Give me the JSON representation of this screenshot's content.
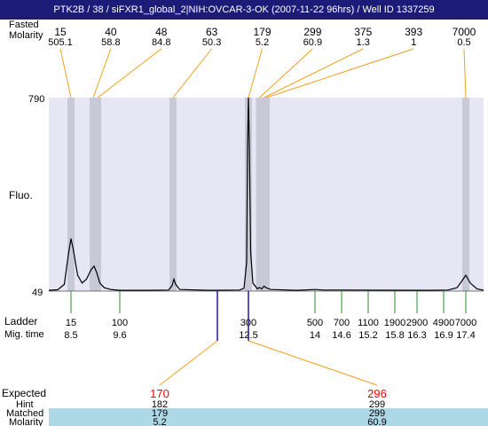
{
  "header": {
    "title": "PTK2B / 38 / siFXR1_global_2|NIH:OVCAR-3-OK (2007-11-22 96hrs) / Well ID 1337259",
    "row_labels": [
      "Fasted",
      "Molarity"
    ]
  },
  "labels": {
    "fluo": "Fluo.",
    "ymax": "790",
    "ymin": "49",
    "ladder": "Ladder",
    "mig_time": "Mig. time",
    "expected": "Expected",
    "hint": "Hint",
    "matched": "Matched",
    "molarity": "Molarity"
  },
  "colors": {
    "title_bg": "#1c1c78",
    "plot_bg": "#e6e6f5",
    "band": "#c8c8d6",
    "connector": "#f0a020",
    "ladder_tick": "#2e8b2e",
    "expected_text": "#ff0000",
    "row_highlight": "#add8e6"
  },
  "chart_data": {
    "type": "line",
    "title": "PTK2B / 38 / siFXR1_global_2|NIH:OVCAR-3-OK (2007-11-22 96hrs) / Well ID 1337259",
    "ylabel": "Fluo.",
    "ylim": [
      49,
      790
    ],
    "peaks": [
      {
        "size": "15",
        "molarity": "505.1",
        "time": 8.5
      },
      {
        "size": "40",
        "molarity": "58.8",
        "time": 9.0
      },
      {
        "size": "48",
        "molarity": "84.8",
        "time": 9.1
      },
      {
        "size": "63",
        "molarity": "50.3",
        "time": 10.8
      },
      {
        "size": "179",
        "molarity": "5.2",
        "time": 12.5
      },
      {
        "size": "299",
        "molarity": "60.9",
        "time": 12.75
      },
      {
        "size": "375",
        "molarity": "1.3",
        "time": 12.85
      },
      {
        "size": "393",
        "molarity": "1",
        "time": 12.9
      },
      {
        "size": "7000",
        "molarity": "0.5",
        "time": 17.4
      }
    ],
    "ladder": [
      {
        "size": "15",
        "time": "8.5"
      },
      {
        "size": "100",
        "time": "9.6"
      },
      {
        "size": "300",
        "time": "12.5"
      },
      {
        "size": "500",
        "time": "14"
      },
      {
        "size": "700",
        "time": "14.6"
      },
      {
        "size": "1100",
        "time": "15.2"
      },
      {
        "size": "1900",
        "time": "15.8"
      },
      {
        "size": "2900",
        "time": "16.3"
      },
      {
        "size": "4900",
        "time": "16.9"
      },
      {
        "size": "7000",
        "time": "17.4"
      }
    ],
    "expected": [
      {
        "expected": "170",
        "hint": "182",
        "matched": "179",
        "molarity": "5.2",
        "ladder_time": 11.8
      },
      {
        "expected": "296",
        "hint": "299",
        "matched": "299",
        "molarity": "60.9",
        "ladder_time": 12.5
      }
    ],
    "trace": [
      [
        8.0,
        52
      ],
      [
        8.2,
        54
      ],
      [
        8.35,
        75
      ],
      [
        8.45,
        200
      ],
      [
        8.5,
        250
      ],
      [
        8.55,
        210
      ],
      [
        8.65,
        110
      ],
      [
        8.75,
        80
      ],
      [
        8.85,
        95
      ],
      [
        8.95,
        130
      ],
      [
        9.02,
        145
      ],
      [
        9.08,
        120
      ],
      [
        9.15,
        80
      ],
      [
        9.25,
        62
      ],
      [
        9.4,
        55
      ],
      [
        9.6,
        52
      ],
      [
        10.2,
        52
      ],
      [
        10.7,
        53
      ],
      [
        10.78,
        70
      ],
      [
        10.82,
        95
      ],
      [
        10.86,
        75
      ],
      [
        10.95,
        55
      ],
      [
        11.6,
        52
      ],
      [
        12.3,
        53
      ],
      [
        12.4,
        60
      ],
      [
        12.46,
        160
      ],
      [
        12.48,
        600
      ],
      [
        12.5,
        790
      ],
      [
        12.52,
        620
      ],
      [
        12.55,
        200
      ],
      [
        12.6,
        80
      ],
      [
        12.7,
        58
      ],
      [
        12.75,
        63
      ],
      [
        12.8,
        57
      ],
      [
        12.85,
        68
      ],
      [
        12.9,
        62
      ],
      [
        13.0,
        55
      ],
      [
        13.6,
        52
      ],
      [
        14.0,
        55
      ],
      [
        14.2,
        53
      ],
      [
        14.6,
        53
      ],
      [
        16.5,
        52
      ],
      [
        17.0,
        53
      ],
      [
        17.2,
        62
      ],
      [
        17.3,
        85
      ],
      [
        17.4,
        110
      ],
      [
        17.5,
        80
      ],
      [
        17.65,
        58
      ],
      [
        17.8,
        52
      ]
    ],
    "grid": false,
    "legend": "none"
  }
}
